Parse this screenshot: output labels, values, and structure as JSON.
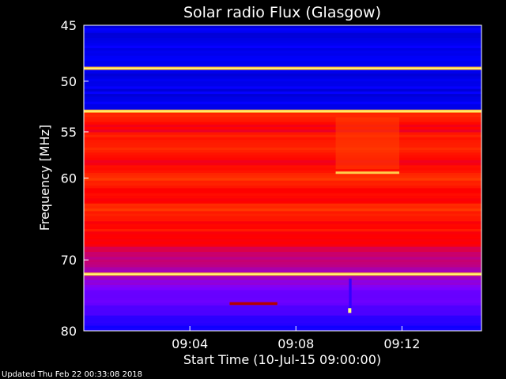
{
  "chart_data": {
    "type": "heatmap",
    "title": "Solar radio Flux (Glasgow)",
    "xlabel": "Start Time (10-Jul-15 09:00:00)",
    "ylabel": "Frequency [MHz]",
    "x_tick_labels": [
      "09:04",
      "09:08",
      "09:12"
    ],
    "x_ticks_minutes": [
      4,
      8,
      12
    ],
    "x_range_minutes": [
      0,
      15
    ],
    "y_tick_labels": [
      "45",
      "50",
      "55",
      "60",
      "70",
      "80"
    ],
    "y_ticks_mhz": [
      45,
      50,
      55,
      60,
      70,
      80
    ],
    "y_range_mhz": [
      45,
      80
    ],
    "y_scale": "log",
    "colormap": [
      "#00007f",
      "#0000ff",
      "#7f00ff",
      "#ff0000",
      "#ff7f00",
      "#ffff7f"
    ],
    "background_color": "#000000",
    "text_color": "#ffffff",
    "regions": [
      {
        "name": "low-frequency band",
        "mhz": [
          45,
          52.9
        ],
        "level": "low"
      },
      {
        "name": "high-intensity band",
        "mhz": [
          52.9,
          66
        ],
        "level": "high"
      },
      {
        "name": "fading band",
        "mhz": [
          66,
          80
        ],
        "level": "medium-to-low"
      }
    ],
    "strong_lines_mhz": [
      48.8,
      52.9,
      71.9
    ],
    "features": [
      {
        "name": "enhanced block",
        "minutes": [
          9.5,
          11.9
        ],
        "mhz": [
          53.5,
          59
        ]
      },
      {
        "name": "bright streak",
        "minutes": [
          9.5,
          11.9
        ],
        "mhz": 59.4
      },
      {
        "name": "dark-red streak",
        "minutes": [
          5.5,
          7.3
        ],
        "mhz": 76
      },
      {
        "name": "spike",
        "minutes": [
          10,
          10.1
        ],
        "mhz": [
          72.5,
          77
        ]
      }
    ]
  },
  "footer": {
    "updated": "Updated Thu Feb 22 00:33:08 2018"
  }
}
